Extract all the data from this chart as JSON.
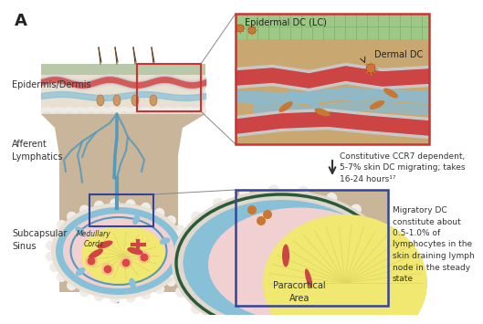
{
  "fig_label": "A",
  "outer_bg": "#ffffff",
  "body_color": "#c8b59a",
  "skin_green": "#a8c88a",
  "skin_dermis": "#d4c4a8",
  "skin_vessel_red": "#cc4444",
  "skin_white": "#e8e0d5",
  "lymph_blue": "#6aaac8",
  "ln_capsule": "#e8ddd0",
  "ln_sinus_blue": "#7ab8c8",
  "ln_paracortex": "#f0d8d8",
  "ln_medulla": "#f0e878",
  "dc_orange": "#cc7733",
  "vessel_red": "#cc4444",
  "vessel_gray": "#c8c8c8",
  "top_right_bg": "#c8a870",
  "top_right_green": "#a0be88",
  "top_right_border": "#cc3333",
  "bot_right_border": "#334499",
  "text_color": "#333333",
  "label_fs": 7,
  "annot_fs": 6.5,
  "left_labels": {
    "epidermis": "Epidermis/Dermis",
    "afferent": "Afferent\nLymphatics",
    "subcapsular": "Subcapsular\nSinus",
    "medullary": "Medullary\nCords"
  },
  "tr_labels": {
    "epidermal": "Epidermal DC (LC)",
    "dermal": "Dermal DC"
  },
  "br_label": "Paracortical\nArea",
  "arrow_text": "Constitutive CCR7 dependent,\n5-7% skin DC migrating; takes\n16-24 hours¹⁷",
  "right_text": "Migratory DC\nconstitute about\n0.5-1.0% of\nlymphocytes in the\nskin draining lymph\nnode in the steady\nstate"
}
